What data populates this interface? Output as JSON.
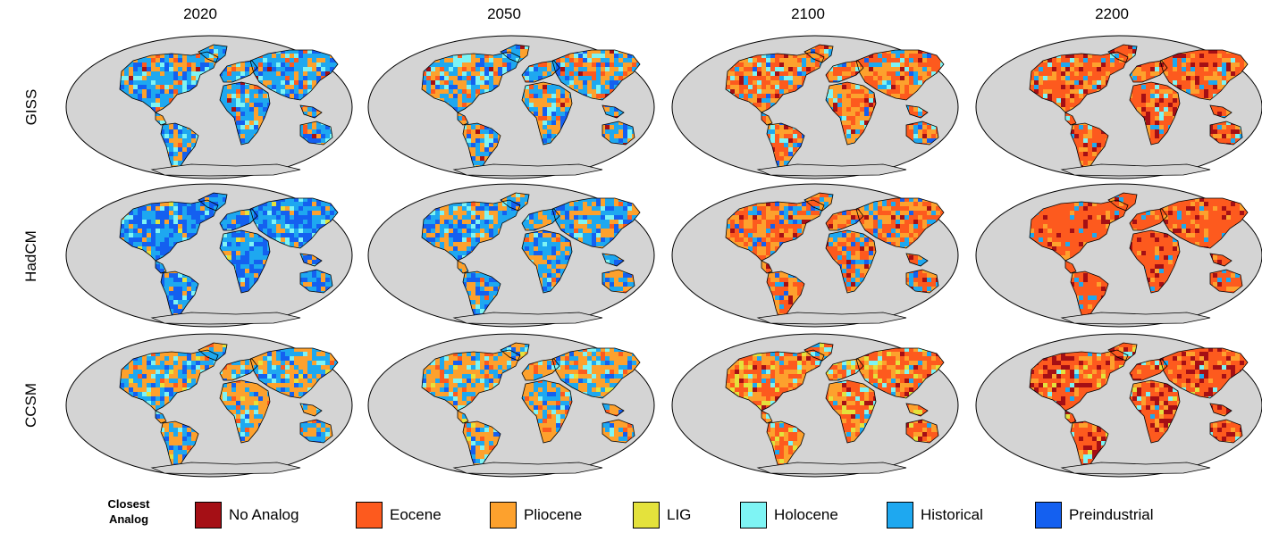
{
  "columns": [
    "2020",
    "2050",
    "2100",
    "2200"
  ],
  "rows": [
    "GISS",
    "HadCM",
    "CCSM"
  ],
  "legend": {
    "title_line1": "Closest",
    "title_line2": "Analog",
    "items": [
      {
        "label": "No Analog",
        "color": "#a50f15"
      },
      {
        "label": "Eocene",
        "color": "#fd5a1e"
      },
      {
        "label": "Pliocene",
        "color": "#fda12d"
      },
      {
        "label": "LIG",
        "color": "#e4e23c"
      },
      {
        "label": "Holocene",
        "color": "#7ef4f4"
      },
      {
        "label": "Historical",
        "color": "#1ea8f0"
      },
      {
        "label": "Preindustrial",
        "color": "#1460f0"
      }
    ]
  },
  "map_style": {
    "ocean": "#d4d4d4",
    "outline": "#000000"
  },
  "panels": [
    [
      {
        "mix": {
          "Historical": 0.42,
          "Preindustrial": 0.22,
          "Pliocene": 0.22,
          "Holocene": 0.08,
          "Eocene": 0.04,
          "No Analog": 0.02
        }
      },
      {
        "mix": {
          "Historical": 0.32,
          "Pliocene": 0.32,
          "Holocene": 0.12,
          "Preindustrial": 0.12,
          "Eocene": 0.1,
          "No Analog": 0.02
        }
      },
      {
        "mix": {
          "Pliocene": 0.36,
          "Eocene": 0.34,
          "Historical": 0.14,
          "Holocene": 0.08,
          "No Analog": 0.05,
          "Preindustrial": 0.03
        }
      },
      {
        "mix": {
          "Eocene": 0.55,
          "Pliocene": 0.22,
          "No Analog": 0.12,
          "Historical": 0.07,
          "Holocene": 0.04
        }
      }
    ],
    [
      {
        "mix": {
          "Preindustrial": 0.45,
          "Historical": 0.38,
          "Pliocene": 0.1,
          "Holocene": 0.05,
          "LIG": 0.02
        }
      },
      {
        "mix": {
          "Historical": 0.38,
          "Preindustrial": 0.22,
          "Pliocene": 0.3,
          "Holocene": 0.06,
          "Eocene": 0.04
        }
      },
      {
        "mix": {
          "Pliocene": 0.4,
          "Eocene": 0.36,
          "Historical": 0.14,
          "Preindustrial": 0.06,
          "No Analog": 0.04
        }
      },
      {
        "mix": {
          "Eocene": 0.72,
          "Pliocene": 0.12,
          "No Analog": 0.1,
          "Historical": 0.06
        }
      }
    ],
    [
      {
        "mix": {
          "Pliocene": 0.42,
          "Historical": 0.34,
          "Preindustrial": 0.1,
          "Holocene": 0.08,
          "Eocene": 0.04,
          "LIG": 0.02
        }
      },
      {
        "mix": {
          "Pliocene": 0.5,
          "Historical": 0.26,
          "Holocene": 0.08,
          "Eocene": 0.08,
          "Preindustrial": 0.06,
          "LIG": 0.02
        }
      },
      {
        "mix": {
          "Eocene": 0.42,
          "Pliocene": 0.3,
          "LIG": 0.1,
          "Holocene": 0.06,
          "Historical": 0.06,
          "No Analog": 0.06
        }
      },
      {
        "mix": {
          "Eocene": 0.55,
          "No Analog": 0.2,
          "Pliocene": 0.15,
          "Holocene": 0.05,
          "LIG": 0.03,
          "Historical": 0.02
        }
      }
    ]
  ]
}
